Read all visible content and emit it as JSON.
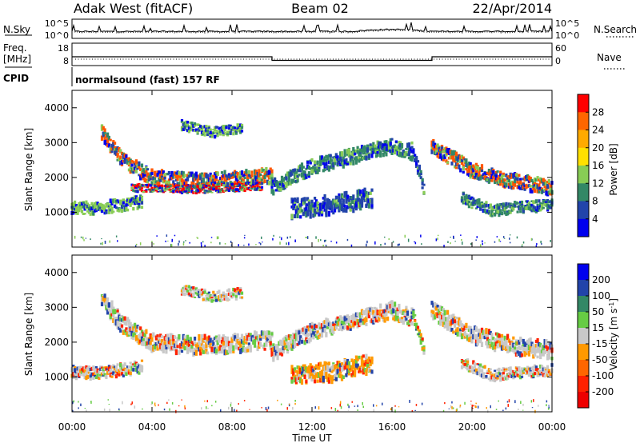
{
  "header": {
    "title_left": "Adak West (fitACF)",
    "title_center": "Beam 02",
    "title_right": "22/Apr/2014"
  },
  "noise_panel": {
    "left_label": "N.Sky",
    "right_label": "N.Search",
    "left_ticks": [
      "10^5",
      "10^0"
    ],
    "right_ticks": [
      "10^5",
      "10^0"
    ]
  },
  "freq_panel": {
    "left_label_1": "Freq.",
    "left_label_2": "[MHz]",
    "right_label": "Nave",
    "left_ticks": [
      "18",
      "8"
    ],
    "right_ticks": [
      "60",
      "0"
    ],
    "cpid_label": "CPID",
    "cpid_text": "normalsound (fast) 157 RF",
    "frequency_steps": [
      {
        "t_start": 0,
        "t_end": 10,
        "value": 13
      },
      {
        "t_start": 10,
        "t_end": 18,
        "value": 10.5
      },
      {
        "t_start": 18,
        "t_end": 24,
        "value": 13
      }
    ]
  },
  "chart_data": [
    {
      "type": "heatmap",
      "name": "power",
      "ylabel": "Slant Range [km]",
      "yticks": [
        "4000",
        "3000",
        "2000",
        "1000"
      ],
      "ylim": [
        0,
        4500
      ],
      "colorbar_label": "Power [dB]",
      "colorbar_ticks": [
        "28",
        "24",
        "20",
        "16",
        "12",
        "8",
        "4"
      ],
      "colorbar_colors": [
        "#ff0000",
        "#ff6600",
        "#ffaa00",
        "#ffe000",
        "#88cc55",
        "#338866",
        "#2244aa",
        "#0000ee"
      ],
      "bands": [
        {
          "t": [
            1.5,
            2.5,
            4,
            6,
            8,
            10
          ],
          "r": [
            3300,
            2500,
            2000,
            1900,
            1950,
            2050
          ],
          "width": 260,
          "core": "#ff5500"
        },
        {
          "t": [
            3,
            6,
            9.5
          ],
          "r": [
            1700,
            1650,
            1750
          ],
          "width": 140,
          "core": "#ff0000"
        },
        {
          "t": [
            0,
            1,
            2.5,
            3.5
          ],
          "r": [
            1150,
            1100,
            1200,
            1300
          ],
          "width": 220,
          "core": "#88cc55"
        },
        {
          "t": [
            5.5,
            7,
            8.5
          ],
          "r": [
            3500,
            3300,
            3400
          ],
          "width": 180,
          "core": "#88cc55"
        },
        {
          "t": [
            10,
            12,
            14,
            16,
            17
          ],
          "r": [
            1700,
            2300,
            2600,
            2900,
            2700
          ],
          "width": 260,
          "core": "#338866"
        },
        {
          "t": [
            11,
            13,
            15
          ],
          "r": [
            1100,
            1200,
            1400
          ],
          "width": 320,
          "core": "#2244aa"
        },
        {
          "t": [
            17,
            17.6
          ],
          "r": [
            2900,
            1700
          ],
          "width": 220,
          "core": "#2244aa"
        },
        {
          "t": [
            18,
            20,
            22,
            24
          ],
          "r": [
            2900,
            2200,
            1900,
            1700
          ],
          "width": 260,
          "core": "#ff5500"
        },
        {
          "t": [
            19.5,
            21,
            22.5,
            24
          ],
          "r": [
            1400,
            1050,
            1150,
            1200
          ],
          "width": 200,
          "core": "#338866"
        }
      ]
    },
    {
      "type": "heatmap",
      "name": "velocity",
      "ylabel": "Slant Range [km]",
      "yticks": [
        "4000",
        "3000",
        "2000",
        "1000"
      ],
      "xticks": [
        "00:00",
        "04:00",
        "08:00",
        "12:00",
        "16:00",
        "20:00",
        "00:00"
      ],
      "xlabel": "Time UT",
      "xlim": [
        0,
        24
      ],
      "ylim": [
        0,
        4500
      ],
      "colorbar_label_1": "Velocity [m s",
      "colorbar_label_sup": "-1",
      "colorbar_label_2": "]",
      "colorbar_ticks": [
        "200",
        "100",
        "50",
        "15",
        "-15",
        "-50",
        "-100",
        "-200"
      ],
      "colorbar_colors": [
        "#0000ee",
        "#2244aa",
        "#338866",
        "#66cc44",
        "#c8c8c8",
        "#ff9900",
        "#ff6600",
        "#ff2200",
        "#ee0000"
      ],
      "bands": [
        {
          "t": [
            1.5,
            2.5,
            4,
            6,
            8,
            10
          ],
          "r": [
            3300,
            2500,
            2000,
            1900,
            1950,
            2050
          ],
          "width": 300,
          "core": "#c8c8c8"
        },
        {
          "t": [
            0,
            1,
            2.5,
            3.5
          ],
          "r": [
            1150,
            1100,
            1200,
            1300
          ],
          "width": 220,
          "core": "#c8c8c8"
        },
        {
          "t": [
            5.5,
            7,
            8.5
          ],
          "r": [
            3500,
            3300,
            3400
          ],
          "width": 180,
          "core": "#c8c8c8"
        },
        {
          "t": [
            10,
            12,
            14,
            16,
            17
          ],
          "r": [
            1700,
            2300,
            2600,
            2900,
            2700
          ],
          "width": 280,
          "core": "#c8c8c8"
        },
        {
          "t": [
            11,
            13,
            15
          ],
          "r": [
            1050,
            1150,
            1400
          ],
          "width": 320,
          "core": "#ff9900"
        },
        {
          "t": [
            17,
            17.6
          ],
          "r": [
            2900,
            1800
          ],
          "width": 200,
          "core": "#66cc44"
        },
        {
          "t": [
            18,
            20,
            22,
            24
          ],
          "r": [
            2900,
            2200,
            1900,
            1750
          ],
          "width": 300,
          "core": "#c8c8c8"
        },
        {
          "t": [
            19.5,
            21,
            22.5,
            24
          ],
          "r": [
            1400,
            1050,
            1150,
            1200
          ],
          "width": 200,
          "core": "#c8c8c8"
        }
      ]
    }
  ]
}
